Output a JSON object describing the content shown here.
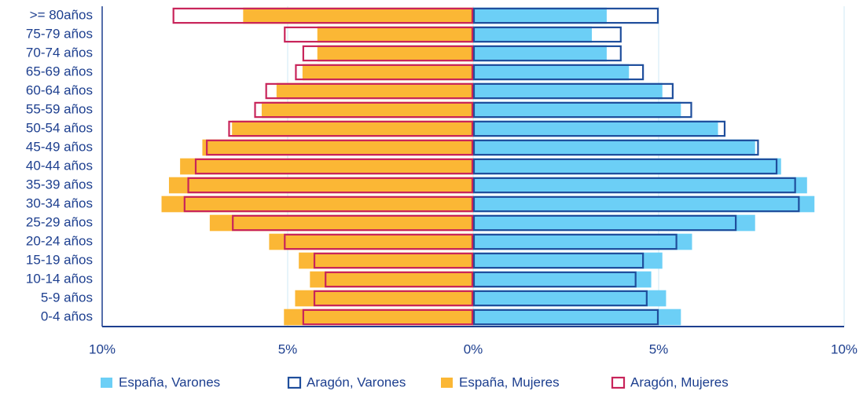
{
  "chart_data": {
    "type": "pyramid",
    "categories": [
      ">= 80años",
      "75-79 años",
      "70-74 años",
      "65-69 años",
      "60-64 años",
      "55-59 años",
      "50-54 años",
      "45-49 años",
      "40-44 años",
      "35-39 años",
      "30-34 años",
      "25-29 años",
      "20-24 años",
      "15-19 años",
      "10-14 años",
      "5-9 años",
      "0-4 años"
    ],
    "series": [
      {
        "name": "España, Varones",
        "color": "#6ccff6",
        "style": "filled",
        "values": [
          3.6,
          3.2,
          3.6,
          4.2,
          5.1,
          5.6,
          6.6,
          7.6,
          8.3,
          9.0,
          9.2,
          7.6,
          5.9,
          5.1,
          4.8,
          5.2,
          5.6
        ]
      },
      {
        "name": "Aragón, Varones",
        "color": "#1f4e9c",
        "style": "outline",
        "values": [
          5.0,
          4.0,
          4.0,
          4.6,
          5.4,
          5.9,
          6.8,
          7.7,
          8.2,
          8.7,
          8.8,
          7.1,
          5.5,
          4.6,
          4.4,
          4.7,
          5.0
        ]
      },
      {
        "name": "España, Mujeres",
        "color": "#fbb735",
        "style": "filled",
        "values": [
          -6.2,
          -4.2,
          -4.2,
          -4.6,
          -5.3,
          -5.7,
          -6.5,
          -7.3,
          -7.9,
          -8.2,
          -8.4,
          -7.1,
          -5.5,
          -4.7,
          -4.4,
          -4.8,
          -5.1
        ]
      },
      {
        "name": "Aragón, Mujeres",
        "color": "#c8245a",
        "style": "outline",
        "values": [
          -8.1,
          -5.1,
          -4.6,
          -4.8,
          -5.6,
          -5.9,
          -6.6,
          -7.2,
          -7.5,
          -7.7,
          -7.8,
          -6.5,
          -5.1,
          -4.3,
          -4.0,
          -4.3,
          -4.6
        ]
      }
    ],
    "xlim": [
      -10,
      10
    ],
    "xticks": [
      {
        "value": -10,
        "label": "10%"
      },
      {
        "value": -5,
        "label": "5%"
      },
      {
        "value": 0,
        "label": "0%"
      },
      {
        "value": 5,
        "label": "5%"
      },
      {
        "value": 10,
        "label": "10%"
      }
    ],
    "grid": true
  }
}
